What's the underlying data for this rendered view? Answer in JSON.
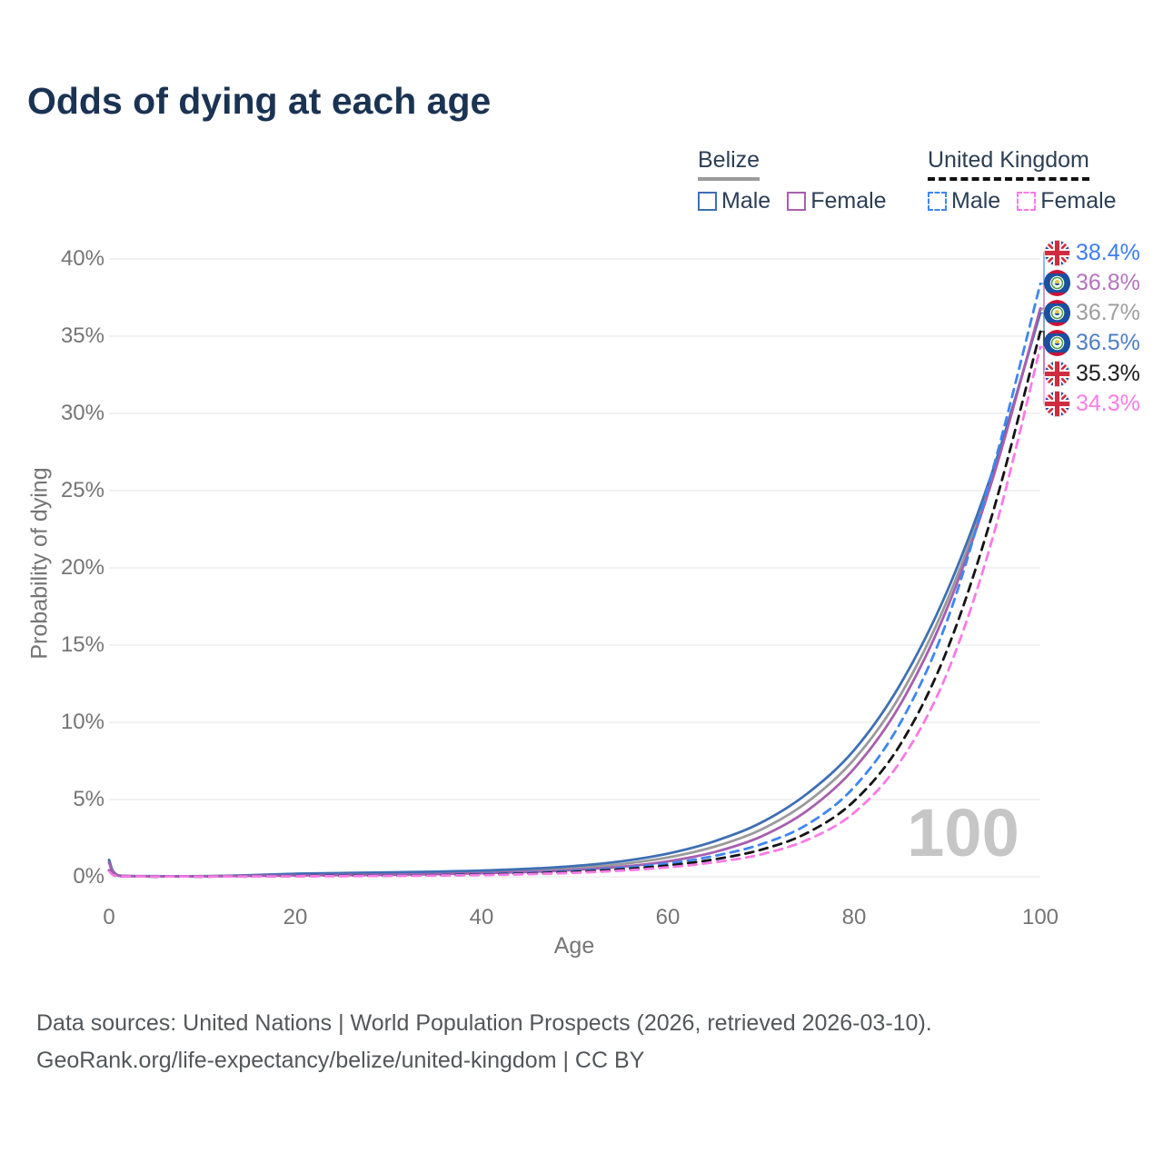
{
  "title": "Odds of dying at each age",
  "watermark": "100",
  "legend": {
    "groups": [
      {
        "id": "belize",
        "label": "Belize",
        "line_style": "solid",
        "underline_color": "#9b9b9b",
        "items": [
          {
            "id": "belize-male",
            "label": "Male",
            "color": "#3e6fb4",
            "dashed": false
          },
          {
            "id": "belize-female",
            "label": "Female",
            "color": "#a75fae",
            "dashed": false
          }
        ]
      },
      {
        "id": "united-kingdom",
        "label": "United Kingdom",
        "line_style": "dashed",
        "underline_color": "#111111",
        "items": [
          {
            "id": "uk-male",
            "label": "Male",
            "color": "#3e86f2",
            "dashed": true
          },
          {
            "id": "uk-female",
            "label": "Female",
            "color": "#fc7ae6",
            "dashed": true
          }
        ]
      }
    ]
  },
  "chart_data": {
    "type": "line",
    "xlabel": "Age",
    "ylabel": "Probability of dying",
    "xlim": [
      0,
      100
    ],
    "ylim": [
      0,
      40
    ],
    "grid": "horizontal",
    "x_ticks": [
      0,
      20,
      40,
      60,
      80,
      100
    ],
    "y_ticks": [
      "0%",
      "5%",
      "10%",
      "15%",
      "20%",
      "25%",
      "30%",
      "35%",
      "40%"
    ],
    "x": [
      0,
      1,
      5,
      10,
      15,
      20,
      25,
      30,
      35,
      40,
      45,
      50,
      55,
      60,
      65,
      70,
      75,
      80,
      85,
      90,
      95,
      100
    ],
    "series": [
      {
        "id": "belize-total",
        "name": "Belize Total",
        "flag": "belize",
        "color": "#9a9a9a",
        "label_color": "#9e9e9e",
        "dashed": false,
        "end_label": "36.7%",
        "values": [
          1.0,
          0.08,
          0.035,
          0.035,
          0.08,
          0.14,
          0.17,
          0.2,
          0.25,
          0.31,
          0.41,
          0.56,
          0.82,
          1.25,
          1.95,
          3.05,
          4.85,
          7.6,
          11.8,
          17.9,
          26.2,
          36.7
        ]
      },
      {
        "id": "belize-male",
        "name": "Belize Male",
        "flag": "belize",
        "color": "#3e6fb4",
        "label_color": "#4c7ec5",
        "dashed": false,
        "end_label": "36.5%",
        "values": [
          1.1,
          0.09,
          0.04,
          0.04,
          0.1,
          0.2,
          0.24,
          0.28,
          0.33,
          0.4,
          0.52,
          0.7,
          1.0,
          1.5,
          2.3,
          3.5,
          5.4,
          8.2,
          12.5,
          18.5,
          26.5,
          36.5
        ]
      },
      {
        "id": "belize-female",
        "name": "Belize Female",
        "flag": "belize",
        "color": "#a75fae",
        "label_color": "#b573bc",
        "dashed": false,
        "end_label": "36.8%",
        "values": [
          0.9,
          0.07,
          0.03,
          0.03,
          0.06,
          0.09,
          0.11,
          0.13,
          0.17,
          0.23,
          0.31,
          0.44,
          0.65,
          1.0,
          1.6,
          2.6,
          4.3,
          7.0,
          11.2,
          17.4,
          26.0,
          36.8
        ]
      },
      {
        "id": "uk-male",
        "name": "United Kingdom Male",
        "flag": "uk",
        "color": "#3e86f2",
        "label_color": "#3c7df2",
        "dashed": true,
        "end_label": "38.4%",
        "values": [
          0.42,
          0.03,
          0.01,
          0.01,
          0.03,
          0.06,
          0.07,
          0.09,
          0.12,
          0.17,
          0.25,
          0.38,
          0.57,
          0.86,
          1.35,
          2.1,
          3.4,
          5.8,
          10.0,
          16.6,
          26.6,
          38.4
        ]
      },
      {
        "id": "uk-total",
        "name": "United Kingdom Total",
        "flag": "uk",
        "color": "#141414",
        "label_color": "#1c1c1c",
        "dashed": true,
        "end_label": "35.3%",
        "values": [
          0.4,
          0.03,
          0.01,
          0.01,
          0.02,
          0.04,
          0.06,
          0.07,
          0.1,
          0.14,
          0.21,
          0.32,
          0.48,
          0.73,
          1.13,
          1.75,
          2.85,
          4.9,
          8.6,
          14.7,
          23.8,
          35.3
        ]
      },
      {
        "id": "uk-female",
        "name": "United Kingdom Female",
        "flag": "uk",
        "color": "#fc7ae6",
        "label_color": "#fa7de8",
        "dashed": true,
        "end_label": "34.3%",
        "values": [
          0.37,
          0.03,
          0.01,
          0.01,
          0.02,
          0.03,
          0.04,
          0.06,
          0.08,
          0.11,
          0.17,
          0.26,
          0.4,
          0.61,
          0.94,
          1.45,
          2.4,
          4.15,
          7.5,
          13.2,
          22.2,
          34.3
        ]
      }
    ]
  },
  "footer": {
    "line1": "Data sources: United Nations | World Population Prospects (2026, retrieved 2026-03-10).",
    "line2": "GeoRank.org/life-expectancy/belize/united-kingdom | CC BY"
  }
}
